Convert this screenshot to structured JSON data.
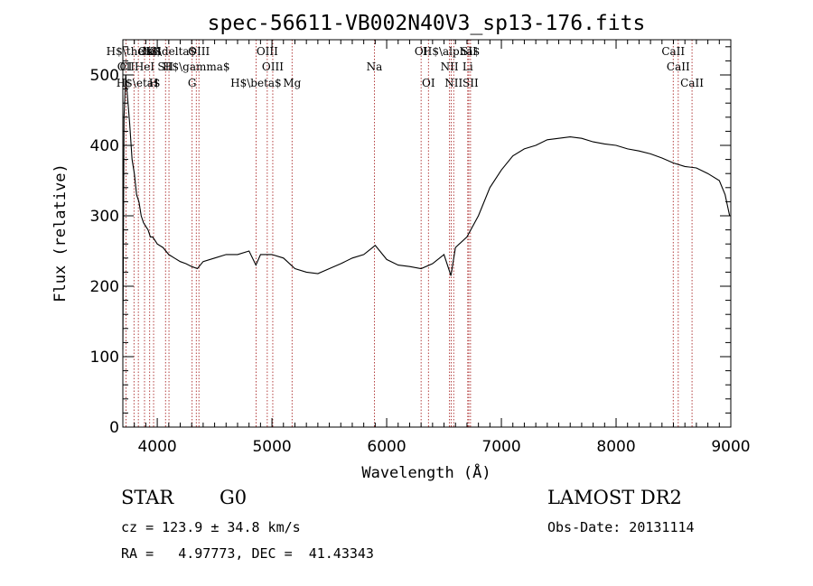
{
  "chart_data": {
    "type": "line",
    "title": "spec-56611-VB002N40V3_sp13-176.fits",
    "xlabel": "Wavelength (Å)",
    "ylabel": "Flux (relative)",
    "xlim": [
      3700,
      9000
    ],
    "ylim": [
      0,
      550
    ],
    "x_ticks": [
      4000,
      5000,
      6000,
      7000,
      8000,
      9000
    ],
    "y_ticks": [
      0,
      100,
      200,
      300,
      400,
      500
    ],
    "grid": false,
    "line_color": "#000000",
    "marker_color": "#a01010",
    "series": [
      {
        "x": [
          3700,
          3710,
          3725,
          3740,
          3760,
          3780,
          3800,
          3820,
          3840,
          3860,
          3880,
          3900,
          3920,
          3940,
          3960,
          3980,
          4000,
          4050,
          4100,
          4150,
          4200,
          4250,
          4300,
          4350,
          4400,
          4500,
          4600,
          4700,
          4800,
          4860,
          4900,
          5000,
          5100,
          5200,
          5300,
          5400,
          5500,
          5600,
          5700,
          5800,
          5900,
          6000,
          6100,
          6200,
          6300,
          6400,
          6500,
          6560,
          6600,
          6700,
          6800,
          6900,
          7000,
          7100,
          7200,
          7300,
          7400,
          7500,
          7600,
          7700,
          7800,
          7900,
          8000,
          8100,
          8200,
          8300,
          8400,
          8500,
          8600,
          8700,
          8800,
          8900,
          8950,
          8990
        ],
        "y": [
          110,
          440,
          500,
          470,
          430,
          380,
          360,
          330,
          320,
          300,
          290,
          285,
          280,
          270,
          270,
          265,
          260,
          255,
          245,
          240,
          235,
          232,
          228,
          225,
          235,
          240,
          245,
          245,
          250,
          230,
          245,
          245,
          240,
          225,
          220,
          218,
          225,
          232,
          240,
          245,
          258,
          238,
          230,
          228,
          225,
          232,
          245,
          215,
          255,
          270,
          300,
          340,
          365,
          385,
          395,
          400,
          408,
          410,
          412,
          410,
          405,
          402,
          400,
          395,
          392,
          388,
          382,
          375,
          370,
          368,
          360,
          350,
          330,
          300
        ]
      }
    ],
    "lines": [
      {
        "name": "CaII",
        "wl": 3934
      },
      {
        "name": "H$\\theta$",
        "wl": 3797
      },
      {
        "name": "K",
        "wl": 3934
      },
      {
        "name": "H$\\delta$",
        "wl": 4102
      },
      {
        "name": "OIII",
        "wl": 4363
      },
      {
        "name": "OIII",
        "wl": 4959
      },
      {
        "name": "OI",
        "wl": 6300
      },
      {
        "name": "H$\\alpha$",
        "wl": 6563
      },
      {
        "name": "SII",
        "wl": 6716
      },
      {
        "name": "CaII",
        "wl": 8498
      },
      {
        "name": "CI",
        "wl": 3727
      },
      {
        "name": "HeI",
        "wl": 3889
      },
      {
        "name": "SII",
        "wl": 4072
      },
      {
        "name": "H$\\gamma$",
        "wl": 4340
      },
      {
        "name": "OIII",
        "wl": 5007
      },
      {
        "name": "Na",
        "wl": 5893
      },
      {
        "name": "NII",
        "wl": 6548
      },
      {
        "name": "Li",
        "wl": 6707
      },
      {
        "name": "CaII",
        "wl": 8542
      },
      {
        "name": "OII",
        "wl": 3727
      },
      {
        "name": "H$\\eta$",
        "wl": 3835
      },
      {
        "name": "H",
        "wl": 3968
      },
      {
        "name": "G",
        "wl": 4304
      },
      {
        "name": "H$\\beta$",
        "wl": 4861
      },
      {
        "name": "Mg",
        "wl": 5175
      },
      {
        "name": "OI",
        "wl": 6364
      },
      {
        "name": "NII",
        "wl": 6584
      },
      {
        "name": "SII",
        "wl": 6731
      },
      {
        "name": "CaII",
        "wl": 8662
      }
    ]
  },
  "info": {
    "object_class": "STAR",
    "subclass": "G0",
    "survey": "LAMOST DR2",
    "cz": "cz = 123.9 ± 34.8 km/s",
    "obs_date": "Obs-Date: 20131114",
    "coords": "RA =   4.97773, DEC =  41.43343"
  }
}
